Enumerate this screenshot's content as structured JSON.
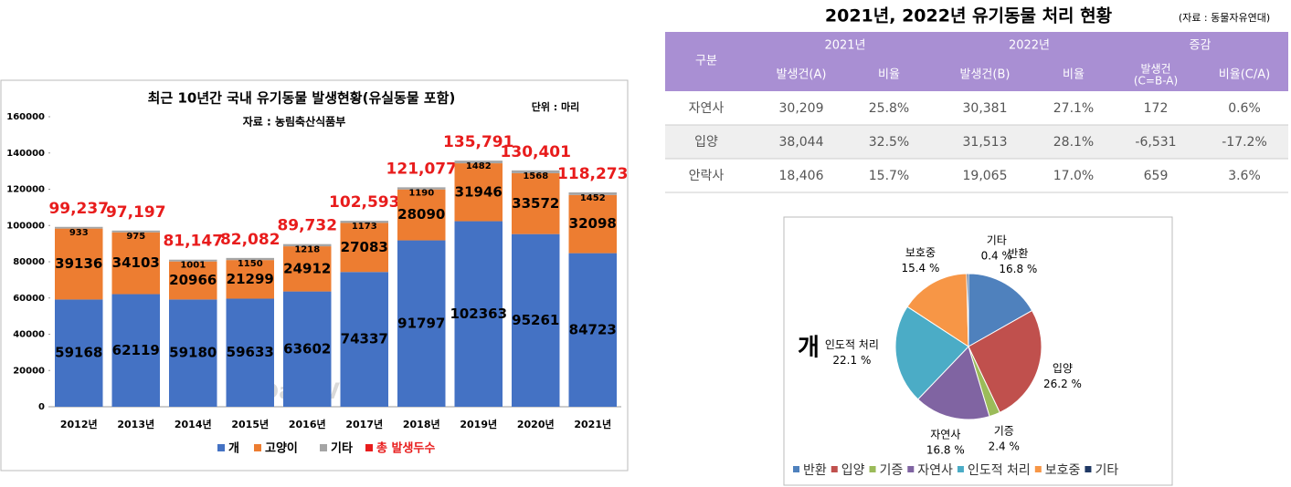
{
  "chart_data": [
    {
      "type": "bar",
      "stacked": true,
      "title": "최근 10년간 국내 유기동물 발생현황(유실동물 포함)",
      "subtitle": "자료 : 농림축산식품부",
      "unit": "단위 : 마리",
      "watermark": "DailyVET",
      "categories": [
        "2012년",
        "2013년",
        "2014년",
        "2015년",
        "2016년",
        "2017년",
        "2018년",
        "2019년",
        "2020년",
        "2021년"
      ],
      "series": [
        {
          "name": "개",
          "color": "#4472c4",
          "values": [
            59168,
            62119,
            59180,
            59633,
            63602,
            74337,
            91797,
            102363,
            95261,
            84723
          ]
        },
        {
          "name": "고양이",
          "color": "#ed7d31",
          "values": [
            39136,
            34103,
            20966,
            21299,
            24912,
            27083,
            28090,
            31946,
            33572,
            32098
          ]
        },
        {
          "name": "기타",
          "color": "#a5a5a5",
          "values": [
            933,
            975,
            1001,
            1150,
            1218,
            1173,
            1190,
            1482,
            1568,
            1452
          ]
        }
      ],
      "totals": {
        "name": "총 발생두수",
        "color": "#e81c1c",
        "values": [
          99237,
          97197,
          81147,
          82082,
          89732,
          102593,
          121077,
          135791,
          130401,
          118273
        ],
        "value_labels": [
          "99,237",
          "97,197",
          "81,147",
          "82,082",
          "89,732",
          "102,593",
          "121,077",
          "135,791",
          "130,401",
          "118,273"
        ]
      },
      "ylim": [
        0,
        160000
      ],
      "yticks": [
        0,
        20000,
        40000,
        60000,
        80000,
        100000,
        120000,
        140000,
        160000
      ],
      "legend": "bottom"
    },
    {
      "type": "pie",
      "label": "개",
      "categories": [
        "반환",
        "입양",
        "기증",
        "자연사",
        "인도적 처리",
        "보호중",
        "기타"
      ],
      "values": [
        16.8,
        26.2,
        2.4,
        16.8,
        22.1,
        15.4,
        0.4
      ],
      "value_labels": [
        "16.8 %",
        "26.2 %",
        "2.4 %",
        "16.8 %",
        "22.1 %",
        "15.4 %",
        "0.4 %"
      ],
      "colors": [
        "#4f81bd",
        "#c0504d",
        "#9bbb59",
        "#8064a2",
        "#4bacc6",
        "#f79646",
        "#1f3864"
      ],
      "legend": "bottom"
    }
  ],
  "table": {
    "title": "2021년, 2022년 유기동물 처리 현황",
    "source": "(자료 : 동물자유연대)",
    "header": [
      "구분",
      "2021년",
      "2022년",
      "증감"
    ],
    "subheader": [
      "발생건(A)",
      "비율",
      "발생건(B)",
      "비율",
      [
        "발생건",
        "(C=B-A)"
      ],
      "비율(C/A)"
    ],
    "rows": [
      [
        "자연사",
        "30,209",
        "25.8%",
        "30,381",
        "27.1%",
        "172",
        "0.6%"
      ],
      [
        "입양",
        "38,044",
        "32.5%",
        "31,513",
        "28.1%",
        "-6,531",
        "-17.2%"
      ],
      [
        "안락사",
        "18,406",
        "15.7%",
        "19,065",
        "17.0%",
        "659",
        "3.6%"
      ]
    ]
  }
}
